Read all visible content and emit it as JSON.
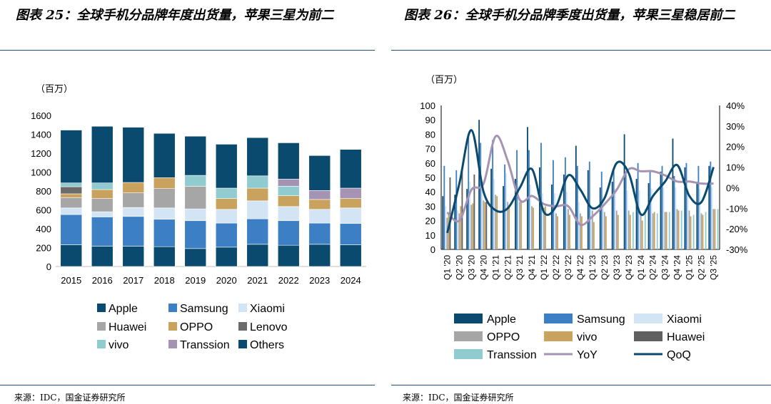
{
  "left": {
    "title": "图表 25：全球手机分品牌年度出货量，苹果三星为前二",
    "source": "来源：IDC，国金证券研究所"
  },
  "right": {
    "title": "图表 26：全球手机分品牌季度出货量，苹果三星稳居前二",
    "source": "来源：IDC，国金证券研究所"
  },
  "colors": {
    "Apple": "#0b4a6f",
    "Samsung": "#3c7fc4",
    "Xiaomi": "#d3e5f5",
    "Huawei_left": "#a6a6a6",
    "OPPO_left": "#c9a35d",
    "Lenovo": "#6b6b6b",
    "vivo_left": "#8fcbcf",
    "Transsion": "#a493b3",
    "Others": "#0b4a6f",
    "OPPO_right": "#a6a6a6",
    "vivo_right": "#c9a35d",
    "Huawei_right": "#606060",
    "Transsion_right": "#8fcbcf",
    "YoY": "#a493b3",
    "QoQ": "#0b4a6f"
  },
  "chart_data": [
    {
      "type": "bar",
      "stacked": true,
      "title": "",
      "ylabel": "（百万）",
      "ylim": [
        0,
        1600
      ],
      "yticks": [
        0,
        200,
        400,
        600,
        800,
        1000,
        1200,
        1400,
        1600
      ],
      "categories": [
        "2015",
        "2016",
        "2017",
        "2018",
        "2019",
        "2020",
        "2021",
        "2022",
        "2023",
        "2024"
      ],
      "series": [
        {
          "name": "Apple",
          "values": [
            230,
            215,
            215,
            210,
            190,
            205,
            235,
            225,
            235,
            230
          ]
        },
        {
          "name": "Samsung",
          "values": [
            320,
            310,
            315,
            290,
            295,
            255,
            270,
            260,
            225,
            225
          ]
        },
        {
          "name": "Xiaomi",
          "values": [
            70,
            55,
            95,
            120,
            125,
            145,
            190,
            150,
            145,
            165
          ]
        },
        {
          "name": "Huawei",
          "values": [
            110,
            140,
            155,
            205,
            240,
            0,
            0,
            0,
            0,
            0
          ]
        },
        {
          "name": "OPPO",
          "values": [
            40,
            95,
            110,
            115,
            0,
            115,
            135,
            115,
            105,
            100
          ]
        },
        {
          "name": "Lenovo",
          "values": [
            75,
            0,
            0,
            0,
            0,
            0,
            0,
            0,
            0,
            0
          ]
        },
        {
          "name": "vivo",
          "values": [
            40,
            70,
            0,
            0,
            115,
            110,
            130,
            100,
            0,
            0
          ]
        },
        {
          "name": "Transsion",
          "values": [
            0,
            0,
            0,
            0,
            0,
            0,
            0,
            75,
            95,
            110
          ]
        },
        {
          "name": "Others",
          "values": [
            560,
            600,
            585,
            470,
            415,
            465,
            405,
            385,
            370,
            410
          ]
        }
      ],
      "legend": [
        "Apple",
        "Samsung",
        "Xiaomi",
        "Huawei",
        "OPPO",
        "Lenovo",
        "vivo",
        "Transsion",
        "Others"
      ],
      "legend_position": "bottom"
    },
    {
      "type": "bar",
      "title": "",
      "ylabel": "（百万）",
      "ylim": [
        0,
        100
      ],
      "yticks": [
        0,
        10,
        20,
        30,
        40,
        50,
        60,
        70,
        80,
        90,
        100
      ],
      "y2lim": [
        -30,
        40
      ],
      "y2ticks": [
        "-30%",
        "-20%",
        "-10%",
        "0%",
        "10%",
        "20%",
        "30%",
        "40%"
      ],
      "categories": [
        "Q1 '20",
        "Q2 '20",
        "Q3 '20",
        "Q4 '20",
        "Q1 '21",
        "Q2 '21",
        "Q3 '21",
        "Q4 '21",
        "Q1 '22",
        "Q2 '22",
        "Q3 '22",
        "Q4 '22",
        "Q1 '23",
        "Q2 '23",
        "Q3 '23",
        "Q4 '23",
        "Q1 '24",
        "Q2 '24",
        "Q3 '24",
        "Q4 '24",
        "Q1 '25",
        "Q2 '25",
        "Q3 '25"
      ],
      "series": [
        {
          "name": "Apple",
          "values": [
            37,
            38,
            42,
            90,
            56,
            44,
            49,
            85,
            57,
            45,
            52,
            72,
            55,
            43,
            47,
            80,
            49,
            46,
            54,
            77,
            57,
            47,
            58
          ]
        },
        {
          "name": "Samsung",
          "values": [
            58,
            55,
            80,
            74,
            76,
            59,
            69,
            69,
            74,
            62,
            64,
            58,
            61,
            54,
            56,
            53,
            60,
            54,
            58,
            51,
            60,
            58,
            61
          ]
        },
        {
          "name": "Xiaomi",
          "values": [
            30,
            27,
            47,
            43,
            49,
            53,
            44,
            45,
            39,
            39,
            40,
            33,
            30,
            33,
            42,
            41,
            41,
            42,
            43,
            43,
            42,
            42,
            43
          ]
        },
        {
          "name": "OPPO",
          "values": [
            22,
            25,
            31,
            34,
            38,
            33,
            33,
            30,
            29,
            25,
            28,
            25,
            27,
            26,
            27,
            27,
            25,
            25,
            26,
            28,
            27,
            25,
            28
          ]
        },
        {
          "name": "vivo",
          "values": [
            25,
            30,
            32,
            33,
            37,
            31,
            34,
            29,
            30,
            23,
            24,
            23,
            19,
            23,
            24,
            24,
            20,
            26,
            26,
            27,
            23,
            24,
            28
          ]
        },
        {
          "name": "Huawei",
          "values": [
            50,
            56,
            52,
            33,
            0,
            0,
            0,
            0,
            0,
            0,
            0,
            0,
            0,
            0,
            0,
            0,
            0,
            0,
            0,
            0,
            0,
            0,
            0
          ]
        },
        {
          "name": "Transsion",
          "values": [
            0,
            0,
            0,
            0,
            0,
            0,
            0,
            0,
            0,
            0,
            0,
            0,
            0,
            0,
            0,
            26,
            28,
            25,
            26,
            27,
            24,
            26,
            28
          ]
        }
      ],
      "lines": [
        {
          "name": "YoY",
          "axis": "right",
          "values": [
            -12,
            -16,
            -1,
            2,
            25,
            13,
            -6,
            -4,
            -8,
            -9,
            -9,
            -18,
            -14,
            -8,
            -1,
            9,
            8,
            8,
            6,
            3,
            3,
            2,
            2
          ]
        },
        {
          "name": "QoQ",
          "axis": "right",
          "values": [
            -22,
            2,
            28,
            -2,
            -11,
            -10,
            0,
            9,
            -12,
            -9,
            6,
            -1,
            -10,
            -5,
            12,
            7,
            -13,
            -4,
            3,
            11,
            -4,
            -7,
            10
          ]
        }
      ],
      "legend": [
        "Apple",
        "Samsung",
        "Xiaomi",
        "OPPO",
        "vivo",
        "Huawei",
        "Transsion",
        "YoY",
        "QoQ"
      ],
      "legend_position": "bottom"
    }
  ]
}
